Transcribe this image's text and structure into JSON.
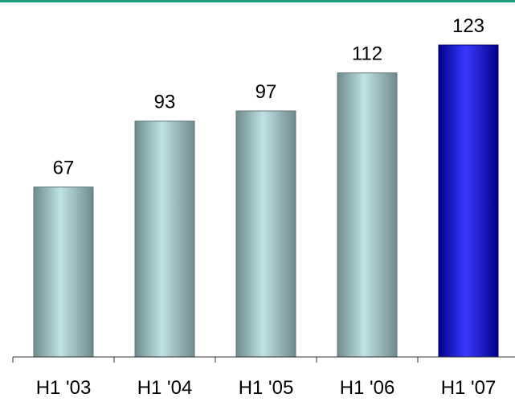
{
  "chart_data": {
    "type": "bar",
    "categories": [
      "H1 '03",
      "H1 '04",
      "H1 '05",
      "H1 '06",
      "H1 '07"
    ],
    "values": [
      67,
      93,
      97,
      112,
      123
    ],
    "data_labels": [
      "67",
      "93",
      "97",
      "112",
      "123"
    ],
    "highlight_index": 4,
    "grid": false,
    "legend": "none"
  },
  "colors": {
    "top_rule": "#1a9a7e",
    "bar_light": "#bfe3e6",
    "bar_dark": "#6f8a8c",
    "highlight_light": "#3a3aff",
    "highlight_dark": "#00008a",
    "axis": "#333333",
    "text": "#000000"
  }
}
